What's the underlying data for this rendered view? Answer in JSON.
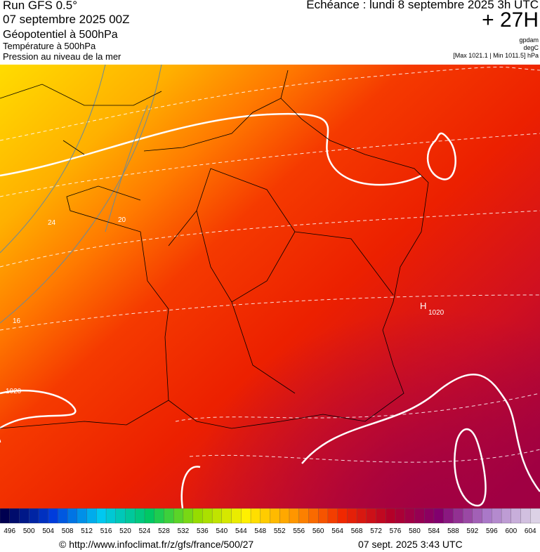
{
  "header": {
    "run": "Run GFS 0.5°",
    "run_date": "07 septembre 2025 00Z",
    "field1": "Géopotentiel à 500hPa",
    "field2": "Température à 500hPa",
    "field3": "Pression au niveau de la mer",
    "echeance": "Echéance : lundi 8 septembre 2025 3h UTC",
    "offset": "+ 27H",
    "unit1": "gpdam",
    "unit2": "degC",
    "pressure_range": "[Max 1021.1 | Min 1011.5] hPa"
  },
  "map": {
    "labels": [
      "24",
      "20",
      "16",
      "1020",
      "1020",
      "H"
    ]
  },
  "colorbar": {
    "labels": [
      496,
      500,
      504,
      508,
      512,
      516,
      520,
      524,
      528,
      532,
      536,
      540,
      544,
      548,
      552,
      556,
      560,
      564,
      568,
      572,
      576,
      580,
      584,
      588,
      592,
      596,
      600,
      604
    ]
  },
  "footer": {
    "url": "© http://www.infoclimat.fr/z/gfs/france/500/27",
    "timestamp": "07 sept. 2025  3:43 UTC"
  }
}
